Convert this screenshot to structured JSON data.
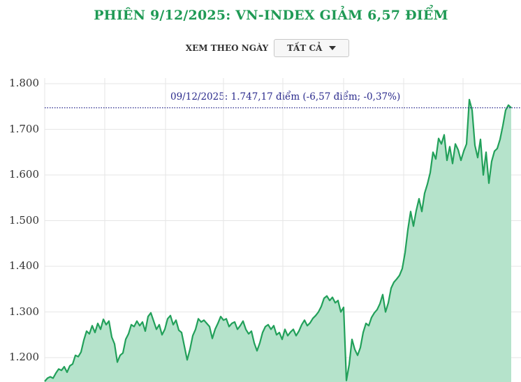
{
  "title": "PHIÊN 9/12/2025: VN-INDEX GIẢM 6,57 ĐIỂM",
  "filter": {
    "label": "XEM THEO NGÀY",
    "selected": "TẤT CẢ",
    "icon": "caret-down-icon"
  },
  "colors": {
    "title": "#1f9a55",
    "line": "#22a05a",
    "area": "#b5e3cb",
    "reference_line": "#2a2a8c",
    "annotation_text": "#2a2a8c",
    "grid": "#e6e6e6"
  },
  "annotation": "09/12/2025: 1.747,17 điểm (-6,57 điểm; -0,37%)",
  "chart_data": {
    "type": "area",
    "title": "PHIÊN 9/12/2025: VN-INDEX GIẢM 6,57 ĐIỂM",
    "xlabel": "",
    "ylabel": "",
    "ylim": [
      1150,
      1800
    ],
    "yticks": [
      1200,
      1300,
      1400,
      1500,
      1600,
      1700,
      1800
    ],
    "ytick_labels": [
      "1.200",
      "1.300",
      "1.400",
      "1.500",
      "1.600",
      "1.700",
      "1.800"
    ],
    "grid": true,
    "legend": null,
    "reference_line": {
      "value": 1747.17,
      "style": "dotted",
      "label": "09/12/2025: 1.747,17 điểm (-6,57 điểm; -0,37%)"
    },
    "last_value": 1747.17,
    "change": -6.57,
    "change_pct": -0.37,
    "series": [
      {
        "name": "VN-INDEX",
        "points": [
          [
            64,
            1148
          ],
          [
            68,
            1155
          ],
          [
            72,
            1158
          ],
          [
            76,
            1155
          ],
          [
            80,
            1166
          ],
          [
            84,
            1175
          ],
          [
            88,
            1172
          ],
          [
            92,
            1180
          ],
          [
            96,
            1168
          ],
          [
            100,
            1182
          ],
          [
            104,
            1186
          ],
          [
            108,
            1205
          ],
          [
            112,
            1202
          ],
          [
            116,
            1212
          ],
          [
            120,
            1238
          ],
          [
            124,
            1258
          ],
          [
            128,
            1252
          ],
          [
            132,
            1270
          ],
          [
            136,
            1255
          ],
          [
            140,
            1275
          ],
          [
            144,
            1262
          ],
          [
            148,
            1284
          ],
          [
            152,
            1272
          ],
          [
            156,
            1280
          ],
          [
            160,
            1245
          ],
          [
            164,
            1230
          ],
          [
            168,
            1190
          ],
          [
            172,
            1205
          ],
          [
            176,
            1210
          ],
          [
            180,
            1240
          ],
          [
            184,
            1252
          ],
          [
            188,
            1272
          ],
          [
            192,
            1268
          ],
          [
            196,
            1280
          ],
          [
            200,
            1270
          ],
          [
            204,
            1278
          ],
          [
            208,
            1258
          ],
          [
            212,
            1290
          ],
          [
            216,
            1298
          ],
          [
            220,
            1280
          ],
          [
            224,
            1262
          ],
          [
            228,
            1272
          ],
          [
            232,
            1250
          ],
          [
            236,
            1262
          ],
          [
            240,
            1285
          ],
          [
            244,
            1292
          ],
          [
            248,
            1272
          ],
          [
            252,
            1282
          ],
          [
            256,
            1260
          ],
          [
            260,
            1255
          ],
          [
            264,
            1225
          ],
          [
            268,
            1195
          ],
          [
            272,
            1218
          ],
          [
            276,
            1248
          ],
          [
            280,
            1262
          ],
          [
            284,
            1285
          ],
          [
            288,
            1278
          ],
          [
            292,
            1282
          ],
          [
            296,
            1275
          ],
          [
            300,
            1268
          ],
          [
            304,
            1242
          ],
          [
            308,
            1262
          ],
          [
            312,
            1275
          ],
          [
            316,
            1290
          ],
          [
            320,
            1282
          ],
          [
            324,
            1285
          ],
          [
            328,
            1268
          ],
          [
            332,
            1275
          ],
          [
            336,
            1278
          ],
          [
            340,
            1262
          ],
          [
            344,
            1270
          ],
          [
            348,
            1280
          ],
          [
            352,
            1262
          ],
          [
            356,
            1252
          ],
          [
            360,
            1258
          ],
          [
            364,
            1232
          ],
          [
            368,
            1215
          ],
          [
            372,
            1232
          ],
          [
            376,
            1255
          ],
          [
            380,
            1268
          ],
          [
            384,
            1272
          ],
          [
            388,
            1262
          ],
          [
            392,
            1270
          ],
          [
            396,
            1250
          ],
          [
            400,
            1255
          ],
          [
            404,
            1240
          ],
          [
            408,
            1262
          ],
          [
            412,
            1248
          ],
          [
            416,
            1256
          ],
          [
            420,
            1262
          ],
          [
            424,
            1248
          ],
          [
            428,
            1258
          ],
          [
            432,
            1272
          ],
          [
            436,
            1282
          ],
          [
            440,
            1270
          ],
          [
            444,
            1276
          ],
          [
            448,
            1286
          ],
          [
            452,
            1292
          ],
          [
            456,
            1300
          ],
          [
            460,
            1312
          ],
          [
            464,
            1330
          ],
          [
            468,
            1335
          ],
          [
            472,
            1325
          ],
          [
            476,
            1332
          ],
          [
            480,
            1320
          ],
          [
            484,
            1325
          ],
          [
            488,
            1300
          ],
          [
            492,
            1310
          ],
          [
            496,
            1150
          ],
          [
            500,
            1185
          ],
          [
            504,
            1240
          ],
          [
            508,
            1218
          ],
          [
            512,
            1205
          ],
          [
            516,
            1222
          ],
          [
            520,
            1255
          ],
          [
            524,
            1275
          ],
          [
            528,
            1270
          ],
          [
            532,
            1288
          ],
          [
            536,
            1298
          ],
          [
            540,
            1305
          ],
          [
            544,
            1318
          ],
          [
            548,
            1338
          ],
          [
            552,
            1300
          ],
          [
            556,
            1320
          ],
          [
            560,
            1352
          ],
          [
            564,
            1365
          ],
          [
            568,
            1372
          ],
          [
            572,
            1380
          ],
          [
            576,
            1395
          ],
          [
            580,
            1430
          ],
          [
            584,
            1480
          ],
          [
            588,
            1520
          ],
          [
            592,
            1488
          ],
          [
            596,
            1522
          ],
          [
            600,
            1548
          ],
          [
            604,
            1520
          ],
          [
            608,
            1560
          ],
          [
            612,
            1580
          ],
          [
            616,
            1605
          ],
          [
            620,
            1650
          ],
          [
            624,
            1635
          ],
          [
            628,
            1680
          ],
          [
            632,
            1668
          ],
          [
            636,
            1688
          ],
          [
            640,
            1632
          ],
          [
            644,
            1662
          ],
          [
            648,
            1625
          ],
          [
            652,
            1668
          ],
          [
            656,
            1655
          ],
          [
            660,
            1632
          ],
          [
            664,
            1652
          ],
          [
            668,
            1668
          ],
          [
            672,
            1765
          ],
          [
            676,
            1742
          ],
          [
            680,
            1665
          ],
          [
            684,
            1638
          ],
          [
            688,
            1678
          ],
          [
            692,
            1600
          ],
          [
            696,
            1650
          ],
          [
            700,
            1582
          ],
          [
            704,
            1630
          ],
          [
            708,
            1652
          ],
          [
            712,
            1658
          ],
          [
            716,
            1678
          ],
          [
            720,
            1708
          ],
          [
            724,
            1742
          ],
          [
            728,
            1753
          ],
          [
            732,
            1747
          ]
        ]
      }
    ]
  }
}
